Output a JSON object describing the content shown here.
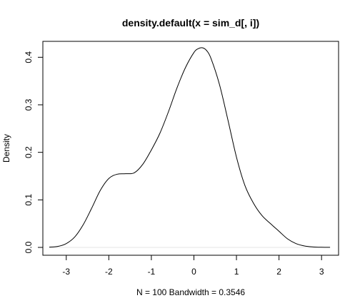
{
  "chart_data": {
    "type": "line",
    "title": "density.default(x = sim_d[, i])",
    "xlabel": "N = 100   Bandwidth = 0.3546",
    "ylabel": "Density",
    "xlim": [
      -3.55,
      3.4
    ],
    "ylim": [
      -0.0165,
      0.4335
    ],
    "x_ticks": [
      "-3",
      "-2",
      "-1",
      "0",
      "1",
      "2",
      "3"
    ],
    "y_ticks": [
      "0.0",
      "0.1",
      "0.2",
      "0.3",
      "0.4"
    ],
    "grid": false,
    "baseline_y": 0,
    "series": [
      {
        "color": "#000000",
        "x": [
          -3.4,
          -3.2,
          -3.0,
          -2.8,
          -2.6,
          -2.4,
          -2.2,
          -2.0,
          -1.8,
          -1.6,
          -1.4,
          -1.2,
          -1.0,
          -0.8,
          -0.6,
          -0.4,
          -0.2,
          0.0,
          0.1,
          0.2,
          0.3,
          0.4,
          0.6,
          0.8,
          1.0,
          1.2,
          1.4,
          1.6,
          1.8,
          2.0,
          2.2,
          2.4,
          2.6,
          2.8,
          3.0,
          3.2
        ],
        "y": [
          0.0005,
          0.002,
          0.008,
          0.022,
          0.048,
          0.083,
          0.12,
          0.145,
          0.154,
          0.155,
          0.157,
          0.175,
          0.205,
          0.24,
          0.285,
          0.335,
          0.378,
          0.41,
          0.418,
          0.42,
          0.414,
          0.398,
          0.343,
          0.268,
          0.19,
          0.13,
          0.093,
          0.067,
          0.05,
          0.034,
          0.018,
          0.008,
          0.003,
          0.001,
          0.0003,
          0.0001
        ]
      }
    ]
  }
}
